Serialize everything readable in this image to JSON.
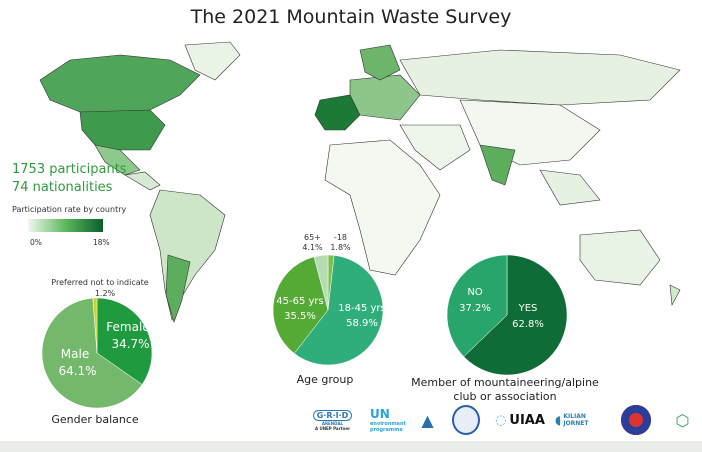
{
  "title": "The 2021 Mountain Waste Survey",
  "stats": {
    "participants": "1753 participants",
    "nationalities": "74 nationalities"
  },
  "legend": {
    "title": "Participation rate by country",
    "min": "0%",
    "max": "18%",
    "color_min": "#f1f7ee",
    "color_max": "#0b5e2a"
  },
  "chart_data": [
    {
      "type": "pie",
      "title": "Gender balance",
      "slices": [
        {
          "label": "Female",
          "value": 34.7,
          "display": "34.7%",
          "color": "#1f9a3f"
        },
        {
          "label": "Male",
          "value": 64.1,
          "display": "64.1%",
          "color": "#74b96b"
        },
        {
          "label": "Preferred not to indicate",
          "value": 1.2,
          "display": "1.2%",
          "color": "#c7d52b"
        }
      ]
    },
    {
      "type": "pie",
      "title": "Age group",
      "slices": [
        {
          "label": "-18",
          "value": 1.8,
          "display": "1.8%",
          "color": "#7cc24a"
        },
        {
          "label": "18-45 yrs",
          "value": 58.9,
          "display": "58.9%",
          "color": "#2fae7c"
        },
        {
          "label": "45-65 yrs",
          "value": 35.5,
          "display": "35.5%",
          "color": "#55aa36"
        },
        {
          "label": "65+",
          "value": 4.1,
          "display": "4.1%",
          "color": "#b7dcb4"
        }
      ]
    },
    {
      "type": "pie",
      "title": "Member of mountaineering/alpine club or association",
      "slices": [
        {
          "label": "YES",
          "value": 62.8,
          "display": "62.8%",
          "color": "#106c36"
        },
        {
          "label": "NO",
          "value": 37.2,
          "display": "37.2%",
          "color": "#28a56a"
        }
      ]
    }
  ],
  "pie_captions": {
    "gender": "Gender balance",
    "age": "Age group",
    "member_line1": "Member of mountaineering/alpine",
    "member_line2": "club or association"
  },
  "logos": {
    "grid": "G·R·I·D",
    "grid_sub": "ARENDAL",
    "grid_partner": "A UNEP Partner",
    "un": "UN",
    "un_sub": "environment programme",
    "uiaa": "UIAA",
    "kilian": "KILIAN JORNET"
  }
}
